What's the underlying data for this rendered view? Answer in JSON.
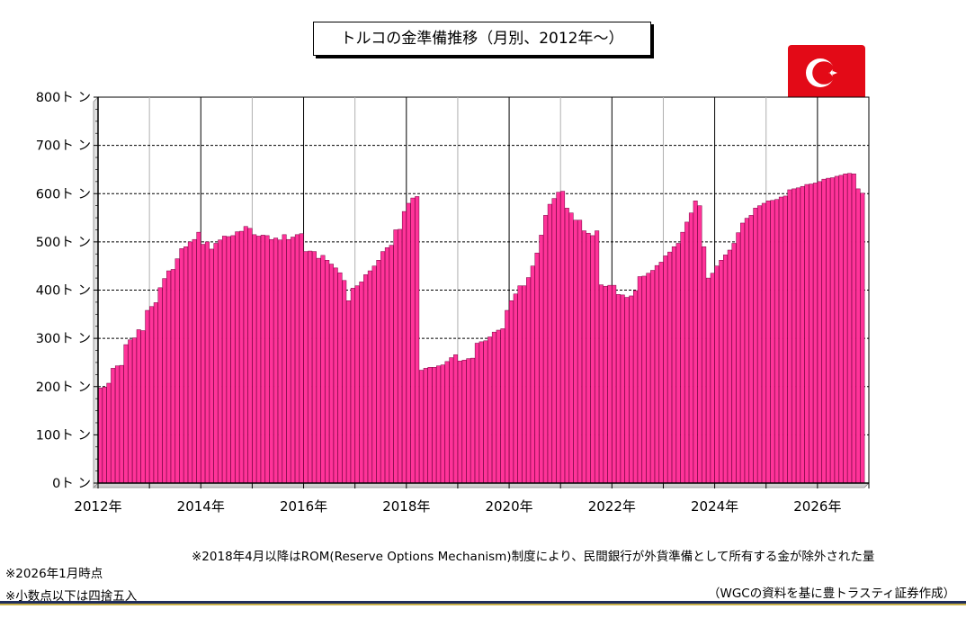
{
  "chart_data": {
    "type": "bar",
    "title": "トルコの金準備推移（月別、2012年～）",
    "ylim": [
      0,
      800
    ],
    "y_tick_labels": [
      "0ト ン",
      "100ト ン",
      "200ト ン",
      "300ト ン",
      "400ト ン",
      "500ト ン",
      "600ト ン",
      "700ト ン",
      "800ト ン"
    ],
    "y_ticks": [
      0,
      100,
      200,
      300,
      400,
      500,
      600,
      700,
      800
    ],
    "x_tick_labels": [
      "2012年",
      "2014年",
      "2016年",
      "2018年",
      "2020年",
      "2022年",
      "2024年",
      "2026年"
    ],
    "x_tick_years": [
      2012,
      2014,
      2016,
      2018,
      2020,
      2022,
      2024,
      2026
    ],
    "x_range_years": [
      2012,
      2027
    ],
    "grid": true,
    "bar_color": "#ff3399",
    "start_month": "2012-01",
    "values": [
      197,
      199,
      207,
      238,
      243,
      244,
      287,
      297,
      301,
      318,
      316,
      358,
      366,
      374,
      405,
      424,
      440,
      443,
      465,
      486,
      490,
      500,
      505,
      520,
      495,
      500,
      485,
      497,
      504,
      512,
      511,
      513,
      521,
      522,
      532,
      528,
      515,
      512,
      514,
      513,
      505,
      508,
      504,
      515,
      505,
      510,
      515,
      517,
      480,
      481,
      480,
      466,
      472,
      462,
      454,
      446,
      436,
      420,
      378,
      404,
      409,
      417,
      432,
      440,
      450,
      462,
      480,
      488,
      493,
      525,
      526,
      563,
      580,
      591,
      594,
      234,
      238,
      240,
      240,
      243,
      245,
      252,
      260,
      266,
      253,
      255,
      258,
      259,
      290,
      293,
      295,
      303,
      313,
      317,
      320,
      358,
      378,
      392,
      409,
      409,
      426,
      450,
      477,
      514,
      555,
      578,
      590,
      603,
      605,
      570,
      560,
      545,
      545,
      523,
      518,
      513,
      523,
      411,
      408,
      410,
      410,
      391,
      390,
      385,
      388,
      399,
      428,
      429,
      435,
      441,
      451,
      458,
      471,
      479,
      490,
      497,
      520,
      541,
      560,
      585,
      575,
      490,
      425,
      435,
      450,
      462,
      473,
      483,
      497,
      519,
      539,
      549,
      555,
      570,
      575,
      580,
      585,
      586,
      588,
      593,
      595,
      608,
      610,
      612,
      615,
      619,
      620,
      622,
      625,
      630,
      632,
      633,
      636,
      638,
      641,
      642,
      641,
      610,
      601
    ]
  },
  "notes": {
    "rom": "※2018年4月以降はROM(Reserve Options Mechanism)制度により、民間銀行が外貨準備として所有する金が除外された量",
    "as_of": "※2026年1月時点",
    "rounding": "※小数点以下は四捨五入",
    "source": "（WGCの資料を基に豊トラスティ証券作成）"
  },
  "colors": {
    "flag_red": "#e30a17"
  },
  "flag_icon": "turkey-flag-icon"
}
